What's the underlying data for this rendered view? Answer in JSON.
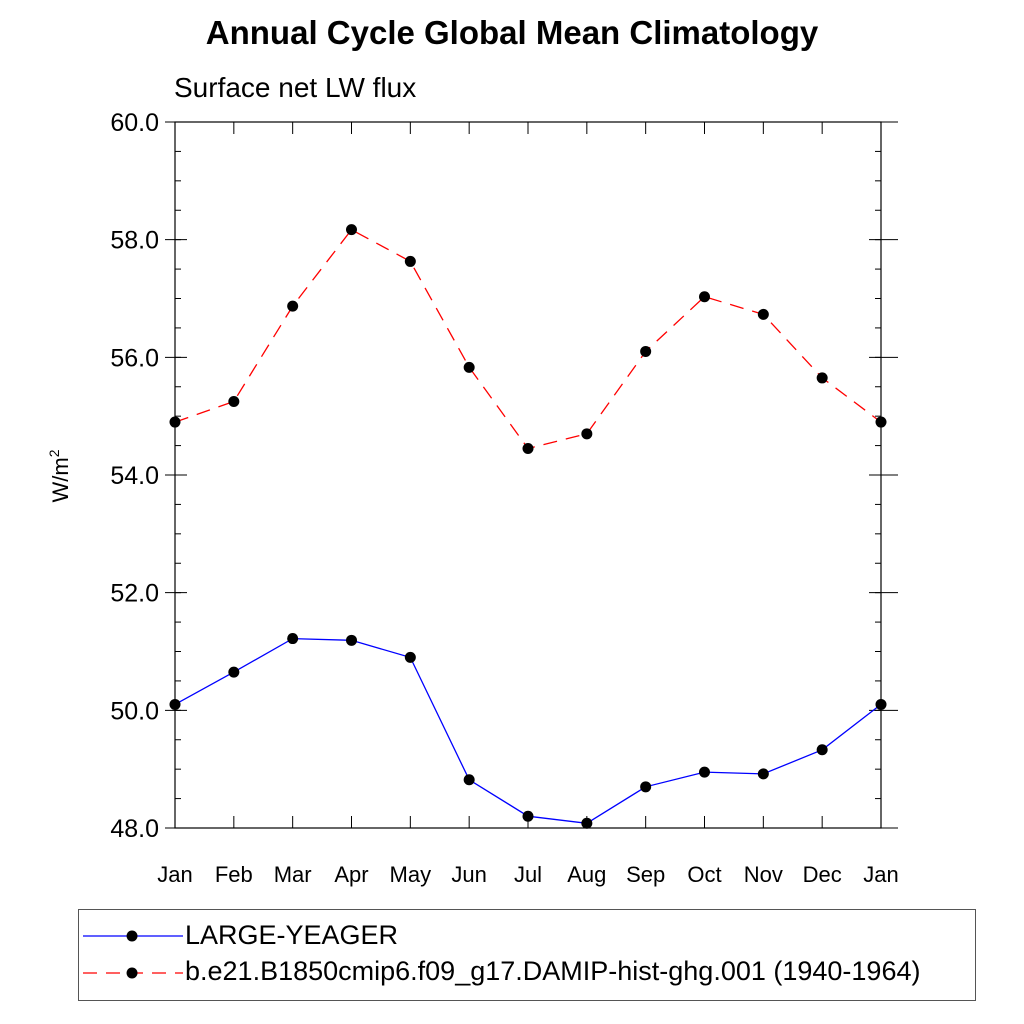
{
  "chart_data": {
    "type": "line",
    "title": "Annual Cycle Global Mean Climatology",
    "subtitle": "Surface net LW flux",
    "ylabel": "W/m",
    "ylabel_superscript": "2",
    "ylim": [
      48.0,
      60.0
    ],
    "yticks": [
      "48.0",
      "50.0",
      "52.0",
      "54.0",
      "56.0",
      "58.0",
      "60.0"
    ],
    "categories": [
      "Jan",
      "Feb",
      "Mar",
      "Apr",
      "May",
      "Jun",
      "Jul",
      "Aug",
      "Sep",
      "Oct",
      "Nov",
      "Dec",
      "Jan"
    ],
    "series": [
      {
        "name": "LARGE-YEAGER",
        "color": "#0000ff",
        "dash": "solid",
        "values": [
          50.1,
          50.65,
          51.22,
          51.19,
          50.9,
          48.82,
          48.2,
          48.08,
          48.7,
          48.95,
          48.92,
          49.33,
          50.1
        ]
      },
      {
        "name": "b.e21.B1850cmip6.f09_g17.DAMIP-hist-ghg.001 (1940-1964)",
        "color": "#ff0000",
        "dash": "dashed",
        "values": [
          54.9,
          55.25,
          56.87,
          58.17,
          57.63,
          55.83,
          54.45,
          54.7,
          56.1,
          57.03,
          56.73,
          55.65,
          54.9
        ]
      }
    ],
    "legend_placement": "bottom",
    "grid": false
  }
}
